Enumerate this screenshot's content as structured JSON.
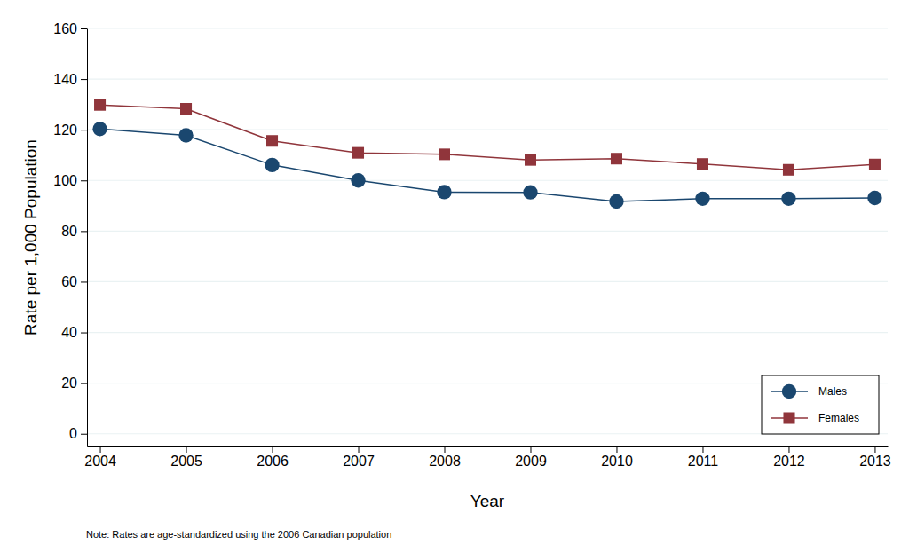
{
  "chart_data": {
    "type": "line",
    "x_label": "Year",
    "y_label": "Rate per 1,000 Population",
    "annotations": [
      "Note: Rates are age-standardized using the 2006 Canadian population"
    ],
    "x": [
      2004,
      2005,
      2006,
      2007,
      2008,
      2009,
      2010,
      2011,
      2012,
      2013
    ],
    "series": [
      {
        "name": "Males",
        "color": "#1a476f",
        "marker": "circle",
        "line_style": "solid",
        "values": [
          120.3,
          117.8,
          106.1,
          100.0,
          95.4,
          95.3,
          91.7,
          92.8,
          92.8,
          93.1
        ]
      },
      {
        "name": "Females",
        "color": "#90353b",
        "marker": "square",
        "line_style": "solid",
        "values": [
          129.8,
          128.3,
          115.6,
          110.9,
          110.3,
          108.1,
          108.6,
          106.5,
          104.2,
          106.3
        ]
      }
    ],
    "xlim": [
      2003.85,
      2013.15
    ],
    "xticks": [
      2004,
      2005,
      2006,
      2007,
      2008,
      2009,
      2010,
      2011,
      2012,
      2013
    ],
    "ylim": [
      -5,
      160
    ],
    "yticks": [
      0,
      20,
      40,
      60,
      80,
      100,
      120,
      140,
      160
    ],
    "grid": true,
    "legend": "bottom-right"
  }
}
